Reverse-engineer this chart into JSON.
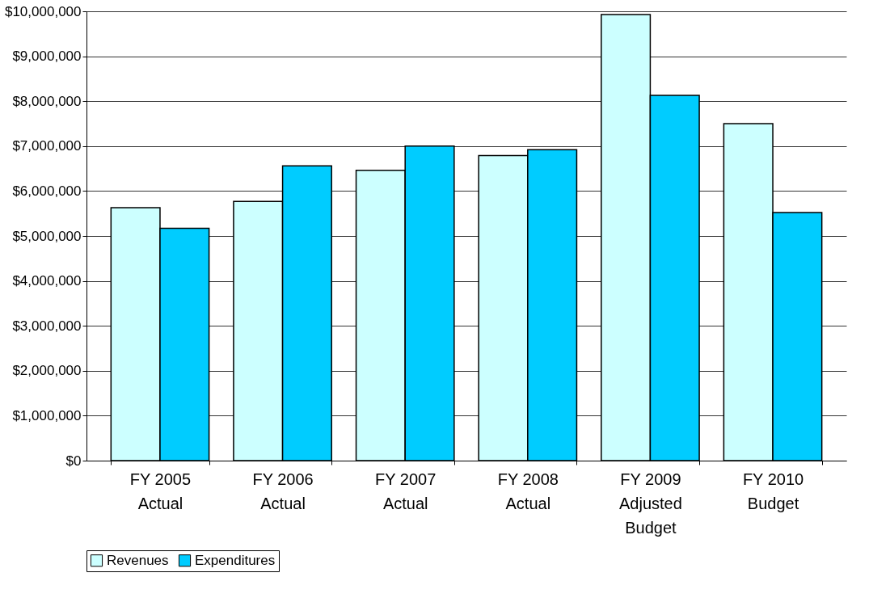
{
  "chart_data": {
    "type": "bar",
    "categories": [
      "FY 2005 Actual",
      "FY 2006 Actual",
      "FY 2007 Actual",
      "FY 2008 Actual",
      "FY 2009 Adjusted Budget",
      "FY 2010 Budget"
    ],
    "series": [
      {
        "name": "Revenues",
        "color": "#ccffff",
        "values": [
          5630000,
          5770000,
          6460000,
          6790000,
          9930000,
          7500000
        ]
      },
      {
        "name": "Expenditures",
        "color": "#00ccff",
        "values": [
          5170000,
          6560000,
          7000000,
          6920000,
          8130000,
          5520000
        ]
      }
    ],
    "ylim": [
      0,
      10000000
    ],
    "yticks": [
      {
        "value": 0,
        "label": "$0"
      },
      {
        "value": 1000000,
        "label": "$1,000,000"
      },
      {
        "value": 2000000,
        "label": "$2,000,000"
      },
      {
        "value": 3000000,
        "label": "$3,000,000"
      },
      {
        "value": 4000000,
        "label": "$4,000,000"
      },
      {
        "value": 5000000,
        "label": "$5,000,000"
      },
      {
        "value": 6000000,
        "label": "$6,000,000"
      },
      {
        "value": 7000000,
        "label": "$7,000,000"
      },
      {
        "value": 8000000,
        "label": "$8,000,000"
      },
      {
        "value": 9000000,
        "label": "$9,000,000"
      },
      {
        "value": 10000000,
        "label": "$10,000,000"
      }
    ],
    "grid": "y",
    "legend": "bottom"
  }
}
